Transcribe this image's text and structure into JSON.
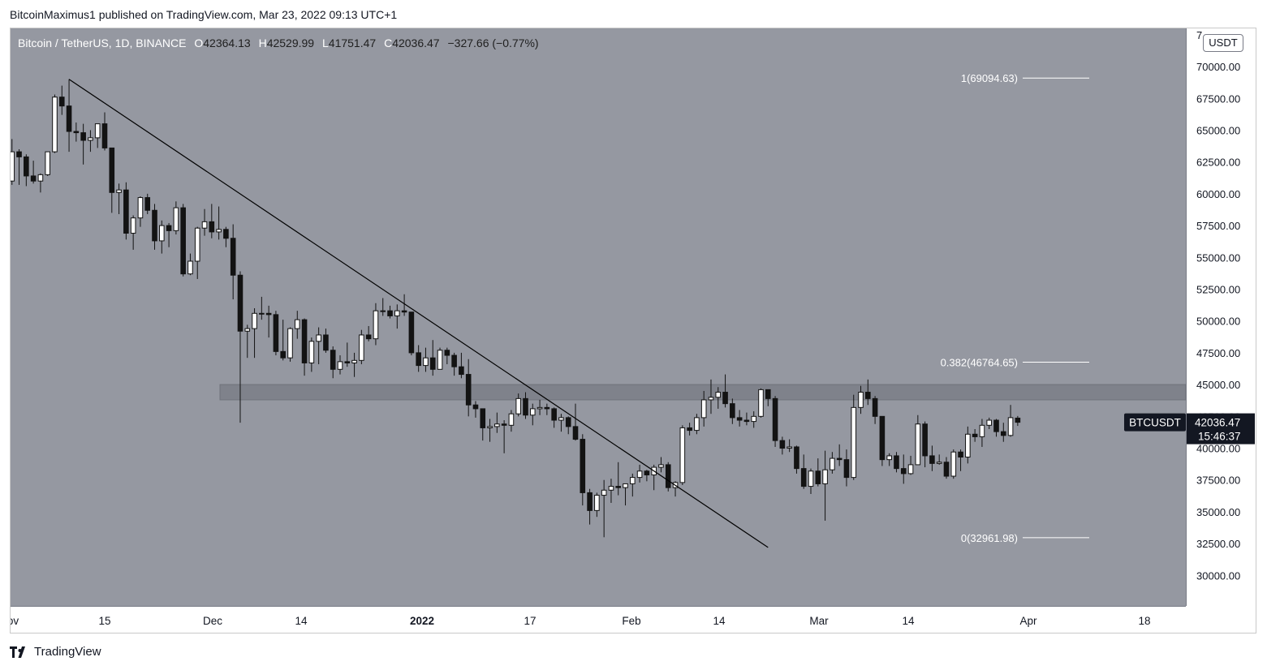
{
  "header": {
    "publisher": "BitcoinMaximus1 published on TradingView.com, Mar 23, 2022 09:13 UTC+1"
  },
  "legend": {
    "symbol": "Bitcoin / TetherUS, 1D, BINANCE",
    "open_label": "O",
    "open": "42364.13",
    "high_label": "H",
    "high": "42529.99",
    "low_label": "L",
    "low": "41751.47",
    "close_label": "C",
    "close": "42036.47",
    "change": "−327.66 (−0.77%)"
  },
  "price_axis": {
    "unit": "USDT",
    "ticks": [
      "70000.00",
      "67500.00",
      "65000.00",
      "62500.00",
      "60000.00",
      "57500.00",
      "55000.00",
      "52500.00",
      "50000.00",
      "47500.00",
      "45000.00",
      "42500.00",
      "40000.00",
      "37500.00",
      "35000.00",
      "32500.00",
      "30000.00"
    ],
    "top_partial": "7"
  },
  "time_axis": {
    "labels": [
      {
        "text": "ov",
        "bold": false
      },
      {
        "text": "15",
        "bold": false
      },
      {
        "text": "Dec",
        "bold": false
      },
      {
        "text": "14",
        "bold": false
      },
      {
        "text": "2022",
        "bold": true
      },
      {
        "text": "17",
        "bold": false
      },
      {
        "text": "Feb",
        "bold": false
      },
      {
        "text": "14",
        "bold": false
      },
      {
        "text": "Mar",
        "bold": false
      },
      {
        "text": "14",
        "bold": false
      },
      {
        "text": "Apr",
        "bold": false
      },
      {
        "text": "18",
        "bold": false
      }
    ]
  },
  "price_tag": {
    "symbol": "BTCUSDT",
    "price": "42036.47",
    "countdown": "15:46:37"
  },
  "fib_levels": [
    {
      "label": "1(69094.63)",
      "price": 69094.63
    },
    {
      "label": "0.382(46764.65)",
      "price": 46764.65
    },
    {
      "label": "0(32961.98)",
      "price": 32961.98
    }
  ],
  "colors": {
    "plot_bg": "#9598a1",
    "candle_up": "#ffffff",
    "candle_down": "#131313",
    "resistance_zone": "#7f828b",
    "trendline": "#000000",
    "tag_bg": "#131722"
  },
  "footer": {
    "brand": "TradingView"
  },
  "chart_data": {
    "type": "candlestick",
    "title": "",
    "ylabel": "",
    "ylim": [
      27600,
      73000
    ],
    "resistance_zone": [
      43800,
      45000
    ],
    "trendline": {
      "start": {
        "date": "2021-11-10",
        "price": 69000
      },
      "end": {
        "date": "2022-02-16",
        "price": 32200
      }
    },
    "ohlc": [
      [
        "2021-11-01",
        61300,
        62400,
        59400,
        61000
      ],
      [
        "2021-11-02",
        61000,
        64300,
        60700,
        63300
      ],
      [
        "2021-11-03",
        63300,
        63500,
        60700,
        62900
      ],
      [
        "2021-11-04",
        62900,
        63100,
        60600,
        61400
      ],
      [
        "2021-11-05",
        61400,
        62600,
        60800,
        61000
      ],
      [
        "2021-11-06",
        61000,
        61600,
        60100,
        61500
      ],
      [
        "2021-11-07",
        61500,
        63300,
        61400,
        63300
      ],
      [
        "2021-11-08",
        63300,
        67800,
        63200,
        67600
      ],
      [
        "2021-11-09",
        67600,
        68500,
        66200,
        66900
      ],
      [
        "2021-11-10",
        66900,
        69000,
        63300,
        64900
      ],
      [
        "2021-11-11",
        64900,
        65600,
        64100,
        64800
      ],
      [
        "2021-11-12",
        64800,
        65500,
        62300,
        64200
      ],
      [
        "2021-11-13",
        64200,
        65000,
        63300,
        64400
      ],
      [
        "2021-11-14",
        64400,
        65500,
        63600,
        65500
      ],
      [
        "2021-11-15",
        65500,
        66400,
        63400,
        63600
      ],
      [
        "2021-11-16",
        63600,
        63600,
        58500,
        60100
      ],
      [
        "2021-11-17",
        60100,
        60800,
        58400,
        60300
      ],
      [
        "2021-11-18",
        60300,
        60900,
        56400,
        56900
      ],
      [
        "2021-11-19",
        56900,
        58300,
        55600,
        58100
      ],
      [
        "2021-11-20",
        58100,
        59800,
        57400,
        59700
      ],
      [
        "2021-11-21",
        59700,
        60000,
        58400,
        58700
      ],
      [
        "2021-11-22",
        58700,
        59200,
        55600,
        56300
      ],
      [
        "2021-11-23",
        56300,
        57900,
        55300,
        57500
      ],
      [
        "2021-11-24",
        57500,
        57700,
        55800,
        57100
      ],
      [
        "2021-11-25",
        57100,
        59400,
        56800,
        58900
      ],
      [
        "2021-11-26",
        58900,
        59200,
        53500,
        53700
      ],
      [
        "2021-11-27",
        53700,
        55300,
        53600,
        54700
      ],
      [
        "2021-11-28",
        54700,
        57400,
        53300,
        57300
      ],
      [
        "2021-11-29",
        57300,
        58800,
        56700,
        57800
      ],
      [
        "2021-11-30",
        57800,
        59200,
        56500,
        57000
      ],
      [
        "2021-12-01",
        57000,
        59000,
        56400,
        57200
      ],
      [
        "2021-12-02",
        57200,
        57400,
        55800,
        56500
      ],
      [
        "2021-12-03",
        56500,
        57600,
        51700,
        53600
      ],
      [
        "2021-12-04",
        53600,
        53900,
        42000,
        49200
      ],
      [
        "2021-12-05",
        49200,
        49700,
        47100,
        49400
      ],
      [
        "2021-12-06",
        49400,
        51000,
        47100,
        50600
      ],
      [
        "2021-12-07",
        50600,
        51900,
        50100,
        50600
      ],
      [
        "2021-12-08",
        50600,
        51200,
        48700,
        50500
      ],
      [
        "2021-12-09",
        50500,
        50800,
        47300,
        47600
      ],
      [
        "2021-12-10",
        47600,
        50100,
        46900,
        47100
      ],
      [
        "2021-12-11",
        47100,
        49500,
        46800,
        49400
      ],
      [
        "2021-12-12",
        49400,
        50800,
        48600,
        50100
      ],
      [
        "2021-12-13",
        50100,
        50200,
        45700,
        46700
      ],
      [
        "2021-12-14",
        46700,
        48700,
        46000,
        48400
      ],
      [
        "2021-12-15",
        48400,
        49500,
        46600,
        48900
      ],
      [
        "2021-12-16",
        48900,
        49400,
        47500,
        47700
      ],
      [
        "2021-12-17",
        47700,
        48000,
        45500,
        46200
      ],
      [
        "2021-12-18",
        46200,
        47300,
        45800,
        46800
      ],
      [
        "2021-12-19",
        46800,
        48300,
        46400,
        46700
      ],
      [
        "2021-12-20",
        46700,
        47500,
        45600,
        46900
      ],
      [
        "2021-12-21",
        46900,
        49300,
        46600,
        48900
      ],
      [
        "2021-12-22",
        48900,
        49600,
        48400,
        48600
      ],
      [
        "2021-12-23",
        48600,
        51400,
        48100,
        50800
      ],
      [
        "2021-12-24",
        50800,
        51800,
        50400,
        50800
      ],
      [
        "2021-12-25",
        50800,
        51200,
        50200,
        50400
      ],
      [
        "2021-12-26",
        50400,
        51300,
        49400,
        50800
      ],
      [
        "2021-12-27",
        50800,
        52100,
        50400,
        50700
      ],
      [
        "2021-12-28",
        50700,
        50700,
        47300,
        47500
      ],
      [
        "2021-12-29",
        47500,
        48100,
        46000,
        46500
      ],
      [
        "2021-12-30",
        46500,
        47900,
        46000,
        47100
      ],
      [
        "2021-12-31",
        47100,
        48500,
        45700,
        46200
      ],
      [
        "2022-01-01",
        46200,
        47900,
        46200,
        47700
      ],
      [
        "2022-01-02",
        47700,
        47900,
        46600,
        47300
      ],
      [
        "2022-01-03",
        47300,
        47500,
        45700,
        46400
      ],
      [
        "2022-01-04",
        46400,
        47500,
        45500,
        45800
      ],
      [
        "2022-01-05",
        45800,
        47000,
        42500,
        43400
      ],
      [
        "2022-01-06",
        43400,
        43700,
        42400,
        43100
      ],
      [
        "2022-01-07",
        43100,
        43100,
        40600,
        41600
      ],
      [
        "2022-01-08",
        41600,
        42300,
        40500,
        41700
      ],
      [
        "2022-01-09",
        41700,
        42800,
        41200,
        41900
      ],
      [
        "2022-01-10",
        41900,
        42200,
        39600,
        41800
      ],
      [
        "2022-01-11",
        41800,
        43000,
        41300,
        42700
      ],
      [
        "2022-01-12",
        42700,
        44300,
        42500,
        43900
      ],
      [
        "2022-01-13",
        43900,
        44400,
        42300,
        42600
      ],
      [
        "2022-01-14",
        42600,
        43500,
        41800,
        43100
      ],
      [
        "2022-01-15",
        43100,
        43800,
        42600,
        43200
      ],
      [
        "2022-01-16",
        43200,
        43500,
        42600,
        43100
      ],
      [
        "2022-01-17",
        43100,
        43200,
        41600,
        42200
      ],
      [
        "2022-01-18",
        42200,
        42700,
        41300,
        42400
      ],
      [
        "2022-01-19",
        42400,
        42500,
        41100,
        41700
      ],
      [
        "2022-01-20",
        41700,
        43500,
        40600,
        40700
      ],
      [
        "2022-01-21",
        40700,
        41100,
        35500,
        36500
      ],
      [
        "2022-01-22",
        36500,
        36800,
        34000,
        35100
      ],
      [
        "2022-01-23",
        35100,
        36500,
        34600,
        36300
      ],
      [
        "2022-01-24",
        36300,
        37500,
        33000,
        36700
      ],
      [
        "2022-01-25",
        36700,
        37600,
        35700,
        37000
      ],
      [
        "2022-01-26",
        37000,
        38900,
        36300,
        36900
      ],
      [
        "2022-01-27",
        36900,
        37200,
        35500,
        37200
      ],
      [
        "2022-01-28",
        37200,
        38000,
        36200,
        37700
      ],
      [
        "2022-01-29",
        37700,
        38700,
        37300,
        38200
      ],
      [
        "2022-01-30",
        38200,
        38300,
        37400,
        37900
      ],
      [
        "2022-01-31",
        37900,
        38700,
        36700,
        38500
      ],
      [
        "2022-02-01",
        38500,
        39300,
        38100,
        38700
      ],
      [
        "2022-02-02",
        38700,
        38900,
        36600,
        36900
      ],
      [
        "2022-02-03",
        36900,
        37400,
        36200,
        37300
      ],
      [
        "2022-02-04",
        37300,
        41800,
        37100,
        41600
      ],
      [
        "2022-02-05",
        41600,
        42000,
        41000,
        41400
      ],
      [
        "2022-02-06",
        41400,
        42700,
        41100,
        42400
      ],
      [
        "2022-02-07",
        42400,
        44500,
        41700,
        43800
      ],
      [
        "2022-02-08",
        43800,
        45400,
        42700,
        44000
      ],
      [
        "2022-02-09",
        44000,
        44800,
        43100,
        44400
      ],
      [
        "2022-02-10",
        44400,
        45800,
        43200,
        43500
      ],
      [
        "2022-02-11",
        43500,
        43900,
        41900,
        42400
      ],
      [
        "2022-02-12",
        42400,
        43000,
        41700,
        42200
      ],
      [
        "2022-02-13",
        42200,
        42800,
        41800,
        42100
      ],
      [
        "2022-02-14",
        42100,
        42900,
        41600,
        42500
      ],
      [
        "2022-02-15",
        42500,
        44700,
        42400,
        44600
      ],
      [
        "2022-02-16",
        44600,
        44600,
        43300,
        43900
      ],
      [
        "2022-02-17",
        43900,
        44100,
        40100,
        40600
      ],
      [
        "2022-02-18",
        40600,
        40900,
        39500,
        40000
      ],
      [
        "2022-02-19",
        40000,
        40700,
        39700,
        40100
      ],
      [
        "2022-02-20",
        40100,
        40200,
        38000,
        38400
      ],
      [
        "2022-02-21",
        38400,
        39500,
        36800,
        37000
      ],
      [
        "2022-02-22",
        37000,
        38400,
        36400,
        38200
      ],
      [
        "2022-02-23",
        38200,
        39200,
        37000,
        37200
      ],
      [
        "2022-02-24",
        37200,
        39800,
        34300,
        38300
      ],
      [
        "2022-02-25",
        38300,
        39700,
        38000,
        39200
      ],
      [
        "2022-02-26",
        39200,
        40300,
        38600,
        39100
      ],
      [
        "2022-02-27",
        39100,
        39900,
        37000,
        37700
      ],
      [
        "2022-02-28",
        37700,
        44200,
        37500,
        43200
      ],
      [
        "2022-03-01",
        43200,
        44900,
        42700,
        44400
      ],
      [
        "2022-03-02",
        44400,
        45400,
        43400,
        43900
      ],
      [
        "2022-03-03",
        43900,
        44100,
        41900,
        42500
      ],
      [
        "2022-03-04",
        42500,
        42500,
        38600,
        39100
      ],
      [
        "2022-03-05",
        39100,
        39600,
        38600,
        39400
      ],
      [
        "2022-03-06",
        39400,
        39700,
        38100,
        38400
      ],
      [
        "2022-03-07",
        38400,
        39500,
        37200,
        38000
      ],
      [
        "2022-03-08",
        38000,
        39400,
        37900,
        38700
      ],
      [
        "2022-03-09",
        38700,
        42600,
        38700,
        41900
      ],
      [
        "2022-03-10",
        41900,
        42100,
        38500,
        39400
      ],
      [
        "2022-03-11",
        39400,
        40200,
        38200,
        38800
      ],
      [
        "2022-03-12",
        38800,
        39500,
        38700,
        38900
      ],
      [
        "2022-03-13",
        38900,
        39300,
        37600,
        37800
      ],
      [
        "2022-03-14",
        37800,
        39900,
        37600,
        39700
      ],
      [
        "2022-03-15",
        39700,
        39900,
        38200,
        39300
      ],
      [
        "2022-03-16",
        39300,
        41700,
        38800,
        41100
      ],
      [
        "2022-03-17",
        41100,
        41500,
        40500,
        40900
      ],
      [
        "2022-03-18",
        40900,
        42300,
        40100,
        41800
      ],
      [
        "2022-03-19",
        41800,
        42400,
        41500,
        42200
      ],
      [
        "2022-03-20",
        42200,
        42300,
        40900,
        41300
      ],
      [
        "2022-03-21",
        41300,
        42000,
        40500,
        41000
      ],
      [
        "2022-03-22",
        41000,
        43400,
        40900,
        42400
      ],
      [
        "2022-03-23",
        42364.13,
        42529.99,
        41751.47,
        42036.47
      ]
    ]
  }
}
